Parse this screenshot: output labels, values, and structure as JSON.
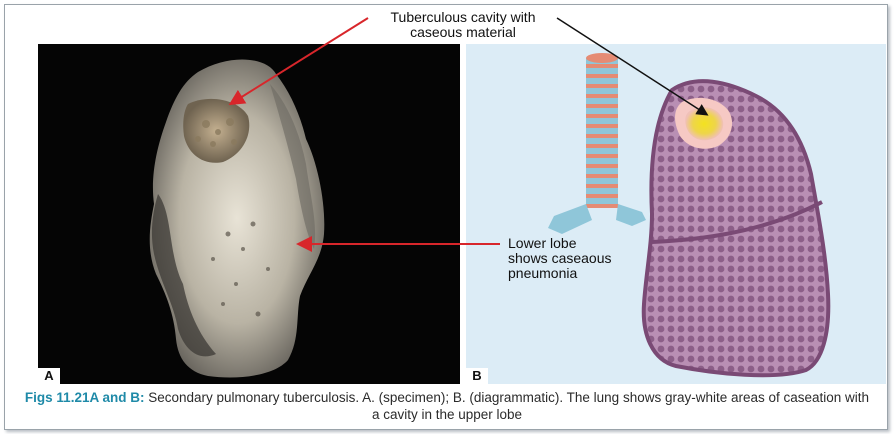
{
  "figure": {
    "labels": {
      "top_line1": "Tuberculous cavity with",
      "top_line2": "caseous material",
      "lower_line1": "Lower lobe",
      "lower_line2": "shows caseaous",
      "lower_line3": "pneumonia"
    },
    "panel_a_label": "A",
    "panel_b_label": "B",
    "caption_id": "Figs 11.21A and B:",
    "caption_text": "Secondary pulmonary tuberculosis. A. (specimen); B. (diagrammatic). The lung shows gray-white areas of caseation with a cavity in the upper lobe"
  },
  "colors": {
    "accent": "#1f8aa8",
    "arrow_red": "#d8262b",
    "panel_b_bg": "#dcecf6",
    "lung_purple": "#8b5a86"
  }
}
